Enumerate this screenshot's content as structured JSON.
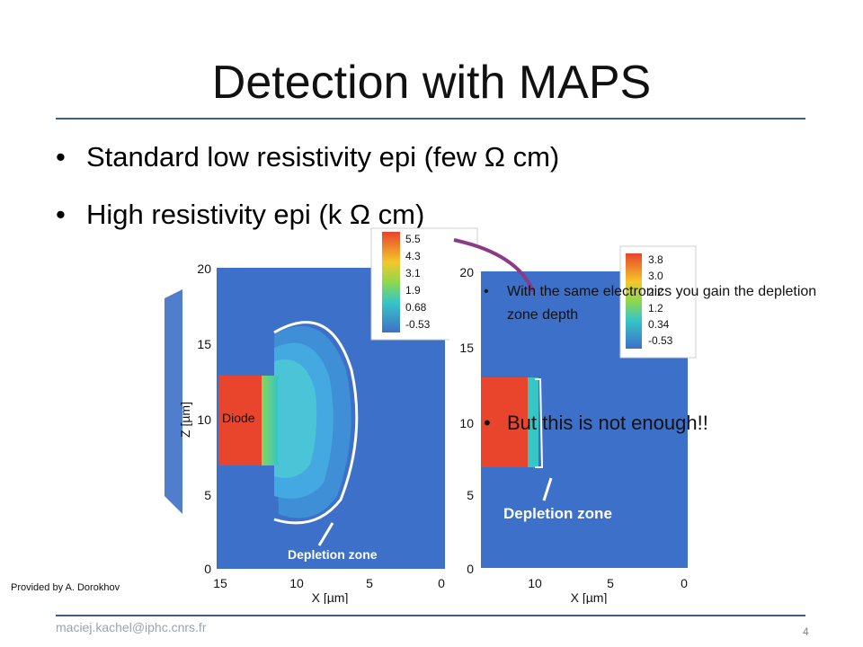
{
  "slide": {
    "title": "Detection with MAPS",
    "bullets": [
      "Standard low resistivity epi (few Ω cm)",
      "High resistivity epi (k Ω cm)"
    ],
    "notes": [
      "With the same electronics you gain the depletion zone depth",
      "But this is not enough!!"
    ],
    "credit": "Provided by A. Dorokhov",
    "footer": "maciej.kachel@iphc.cnrs.fr",
    "page": "4"
  },
  "figure": {
    "diode_label": "Diode",
    "left_plot": {
      "y_axis_label": "Z [µm]",
      "x_axis_label": "X [µm]",
      "y_ticks": [
        "20",
        "15",
        "10",
        "5",
        "0"
      ],
      "x_ticks": [
        "15",
        "10",
        "5",
        "0"
      ],
      "annotation": "Depletion zone",
      "colorbar": [
        "5.5",
        "4.3",
        "3.1",
        "1.9",
        "0.68",
        "-0.53"
      ]
    },
    "right_plot": {
      "x_axis_label": "X [µm]",
      "y_ticks": [
        "20",
        "15",
        "10",
        "5",
        "0"
      ],
      "x_ticks": [
        "10",
        "5",
        "0"
      ],
      "annotation": "Depletion zone",
      "colorbar": [
        "3.8",
        "3.0",
        "2.2",
        "1.2",
        "0.34",
        "-0.53"
      ]
    },
    "colors": {
      "bg_blue": "#3d70c8",
      "diode_red": "#e8452c",
      "arrow_purple": "#8b3a86",
      "rule_blue": "#3a5f8a"
    }
  }
}
